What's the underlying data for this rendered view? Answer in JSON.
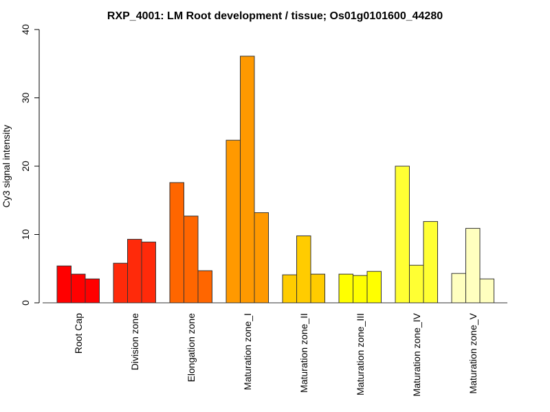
{
  "chart_data": {
    "type": "bar",
    "title": "RXP_4001: LM Root development / tissue; Os01g0101600_44280",
    "xlabel": "",
    "ylabel": "Cy3 signal intensity",
    "ylim": [
      0,
      40
    ],
    "yticks": [
      0,
      10,
      20,
      30,
      40
    ],
    "grid": false,
    "categories": [
      "Root Cap",
      "Division zone",
      "Elongation zone",
      "Maturation zone_I",
      "Maturation zone_II",
      "Maturation zone_III",
      "Maturation zone_IV",
      "Maturation zone_V"
    ],
    "colors": [
      "#FF0000",
      "#FF2A0A",
      "#FF6600",
      "#FF9900",
      "#FFCC00",
      "#FFFF00",
      "#FFFF33",
      "#FFFFBF"
    ],
    "values": [
      [
        5.4,
        4.2,
        3.5
      ],
      [
        5.8,
        9.3,
        8.9
      ],
      [
        17.6,
        12.7,
        4.7
      ],
      [
        23.8,
        36.1,
        13.2
      ],
      [
        4.1,
        9.8,
        4.2
      ],
      [
        4.2,
        4.0,
        4.6
      ],
      [
        20.0,
        5.5,
        11.9
      ],
      [
        4.3,
        10.9,
        3.5
      ]
    ]
  }
}
